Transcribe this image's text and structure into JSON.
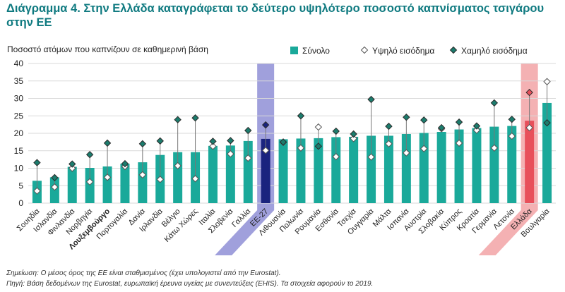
{
  "title": "Διάγραμμα 4. Στην Ελλάδα καταγράφεται το δεύτερο υψηλότερο ποσοστό καπνίσματος τσιγάρου στην ΕΕ",
  "notes": [
    "Σημείωση: Ο μέσος όρος της ΕΕ είναι σταθμισμένος (έχει υπολογιστεί από την Eurostat).",
    "Πηγή: Βάση δεδομένων της Eurostat, ευρωπαϊκή έρευνα υγείας με συνεντεύξεις (EHIS). Τα στοιχεία αφορούν το 2019."
  ],
  "colors": {
    "bar": "#1aa99a",
    "eu_bar": "#1a237e",
    "eu_band": "#8f8fd6",
    "greece_bar": "#e8505b",
    "greece_band": "#f2a3a6",
    "title": "#0f7a80",
    "marker_low": "#1c7c6d"
  },
  "chart_data": {
    "type": "bar",
    "title": "Διάγραμμα 4. Στην Ελλάδα καταγράφεται το δεύτερο υψηλότερο ποσοστό καπνίσματος τσιγάρου στην ΕΕ",
    "ylabel": "Ποσοστό ατόμων που καπνίζουν σε καθημερινή βάση",
    "xlabel": "",
    "ylim": [
      0,
      40
    ],
    "yticks": [
      0,
      5,
      10,
      15,
      20,
      25,
      30,
      35,
      40
    ],
    "grid": true,
    "legend_position": "top-right",
    "highlight": [
      "ΕΕ-27",
      "Ελλάδα"
    ],
    "categories": [
      "Σουηδία",
      "Ισλανδία",
      "Φινλανδία",
      "Νορβηγία",
      "Λουξεμβούργο",
      "Πορτογαλία",
      "Δανία",
      "Ιρλανδία",
      "Βέλγιο",
      "Κάτω Χώρες",
      "Ιταλία",
      "Σλοβενία",
      "Γαλλία",
      "ΕΕ-27",
      "Λιθουανία",
      "Πολωνία",
      "Ρουμανία",
      "Εσθονία",
      "Τσεχία",
      "Ουγγαρία",
      "Μάλτα",
      "Ισπανία",
      "Αυστρία",
      "Σλοβακία",
      "Κύπρος",
      "Κροατία",
      "Γερμανία",
      "Λετονία",
      "Ελλάδα",
      "Βουλγαρία"
    ],
    "series": [
      {
        "name": "Σύνολο",
        "kind": "bar",
        "values": [
          6.4,
          7.4,
          10.4,
          10.1,
          10.5,
          11.3,
          11.7,
          13.8,
          14.6,
          14.6,
          16.4,
          16.5,
          17.8,
          18.4,
          18.3,
          18.5,
          18.6,
          18.9,
          19.0,
          19.3,
          19.3,
          19.8,
          20.1,
          20.4,
          21.1,
          21.5,
          21.9,
          22.1,
          23.6,
          28.7
        ]
      },
      {
        "name": "Υψηλό εισόδημα",
        "kind": "marker-open",
        "values": [
          3.5,
          4.6,
          10.0,
          6.1,
          7.4,
          10.5,
          8.1,
          6.8,
          10.7,
          7.0,
          16.3,
          14.1,
          12.9,
          15.1,
          17.4,
          15.8,
          21.8,
          13.3,
          18.5,
          13.2,
          17.0,
          14.4,
          15.6,
          21.3,
          17.2,
          20.9,
          15.8,
          19.2,
          21.6,
          34.8
        ]
      },
      {
        "name": "Χαμηλό εισόδημα",
        "kind": "marker-filled",
        "values": [
          11.6,
          7.3,
          11.2,
          13.9,
          17.2,
          11.3,
          17.0,
          17.8,
          23.9,
          24.4,
          17.7,
          17.9,
          20.8,
          22.4,
          17.5,
          25.0,
          16.3,
          20.6,
          19.8,
          29.7,
          22.0,
          24.6,
          23.8,
          21.6,
          23.2,
          22.1,
          28.7,
          24.0,
          31.7,
          23.0
        ]
      }
    ]
  }
}
